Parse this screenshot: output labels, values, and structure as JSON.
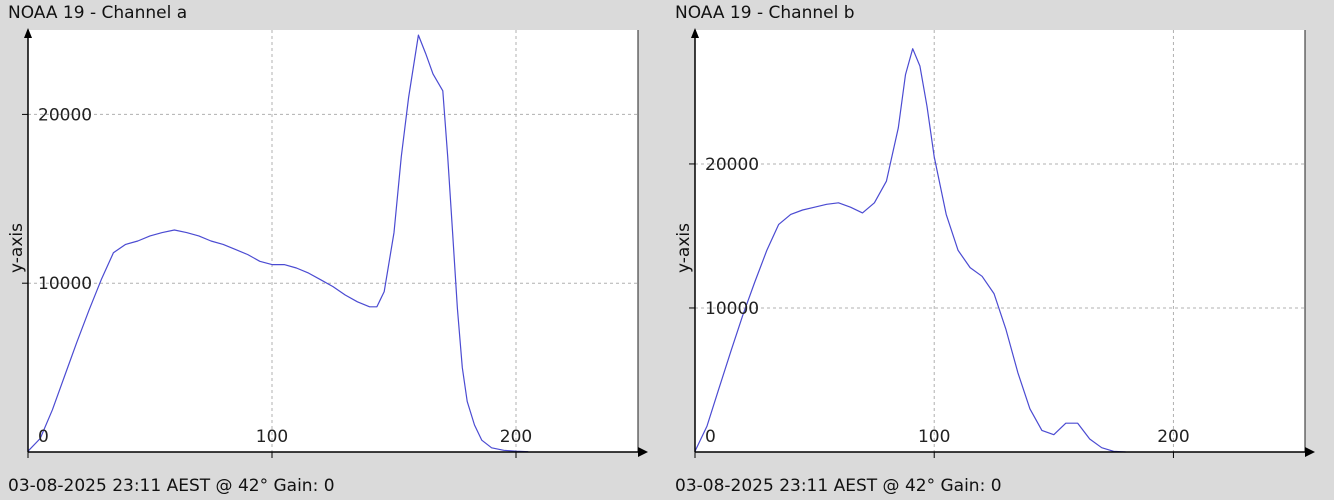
{
  "colors": {
    "background": "#dadada",
    "plot_background": "#ffffff",
    "line": "#4b4bd2",
    "grid": "#b0b0b0",
    "axis": "#000000"
  },
  "chart_data": [
    {
      "type": "line",
      "title": "NOAA 19 - Channel a",
      "footer": "03-08-2025 23:11 AEST @ 42° Gain: 0",
      "xlabel": "",
      "ylabel": "y-axis",
      "xlim": [
        0,
        250
      ],
      "ylim": [
        0,
        25000
      ],
      "x_ticks": [
        "0",
        "100",
        "200"
      ],
      "y_ticks": [
        "10000",
        "20000"
      ],
      "grid": true,
      "series": [
        {
          "x": [
            0,
            5,
            10,
            15,
            20,
            25,
            30,
            35,
            40,
            45,
            50,
            55,
            60,
            65,
            70,
            75,
            80,
            85,
            90,
            95,
            100,
            105,
            110,
            115,
            120,
            125,
            130,
            135,
            140,
            143,
            146,
            150,
            153,
            156,
            160,
            163,
            166,
            170,
            172,
            174,
            176,
            178,
            180,
            183,
            186,
            190,
            195,
            200,
            205
          ],
          "y": [
            50,
            800,
            2500,
            4500,
            6500,
            8400,
            10200,
            11800,
            12300,
            12500,
            12800,
            13000,
            13150,
            13000,
            12800,
            12500,
            12300,
            12000,
            11700,
            11300,
            11100,
            11100,
            10900,
            10600,
            10200,
            9800,
            9300,
            8900,
            8600,
            8600,
            9500,
            13000,
            17500,
            21000,
            24700,
            23600,
            22400,
            21400,
            17500,
            13000,
            8500,
            5000,
            3000,
            1600,
            700,
            250,
            100,
            50,
            20
          ]
        }
      ]
    },
    {
      "type": "line",
      "title": "NOAA 19 - Channel b",
      "footer": "03-08-2025 23:11 AEST @ 42° Gain: 0",
      "xlabel": "",
      "ylabel": "y-axis",
      "xlim": [
        0,
        255
      ],
      "ylim": [
        0,
        29300
      ],
      "x_ticks": [
        "0",
        "100",
        "200"
      ],
      "y_ticks": [
        "10000",
        "20000"
      ],
      "grid": true,
      "series": [
        {
          "x": [
            0,
            5,
            10,
            15,
            20,
            25,
            30,
            35,
            40,
            45,
            50,
            55,
            60,
            65,
            70,
            75,
            80,
            85,
            88,
            91,
            94,
            97,
            100,
            105,
            110,
            115,
            120,
            125,
            130,
            135,
            140,
            145,
            150,
            155,
            160,
            165,
            170,
            175,
            180
          ],
          "y": [
            50,
            1800,
            4400,
            7000,
            9500,
            11800,
            14000,
            15800,
            16500,
            16800,
            17000,
            17200,
            17300,
            17000,
            16600,
            17300,
            18800,
            22500,
            26200,
            28000,
            26800,
            24000,
            20500,
            16500,
            14000,
            12800,
            12200,
            11000,
            8500,
            5500,
            3000,
            1500,
            1200,
            2000,
            2000,
            900,
            300,
            50,
            0
          ]
        }
      ]
    }
  ]
}
